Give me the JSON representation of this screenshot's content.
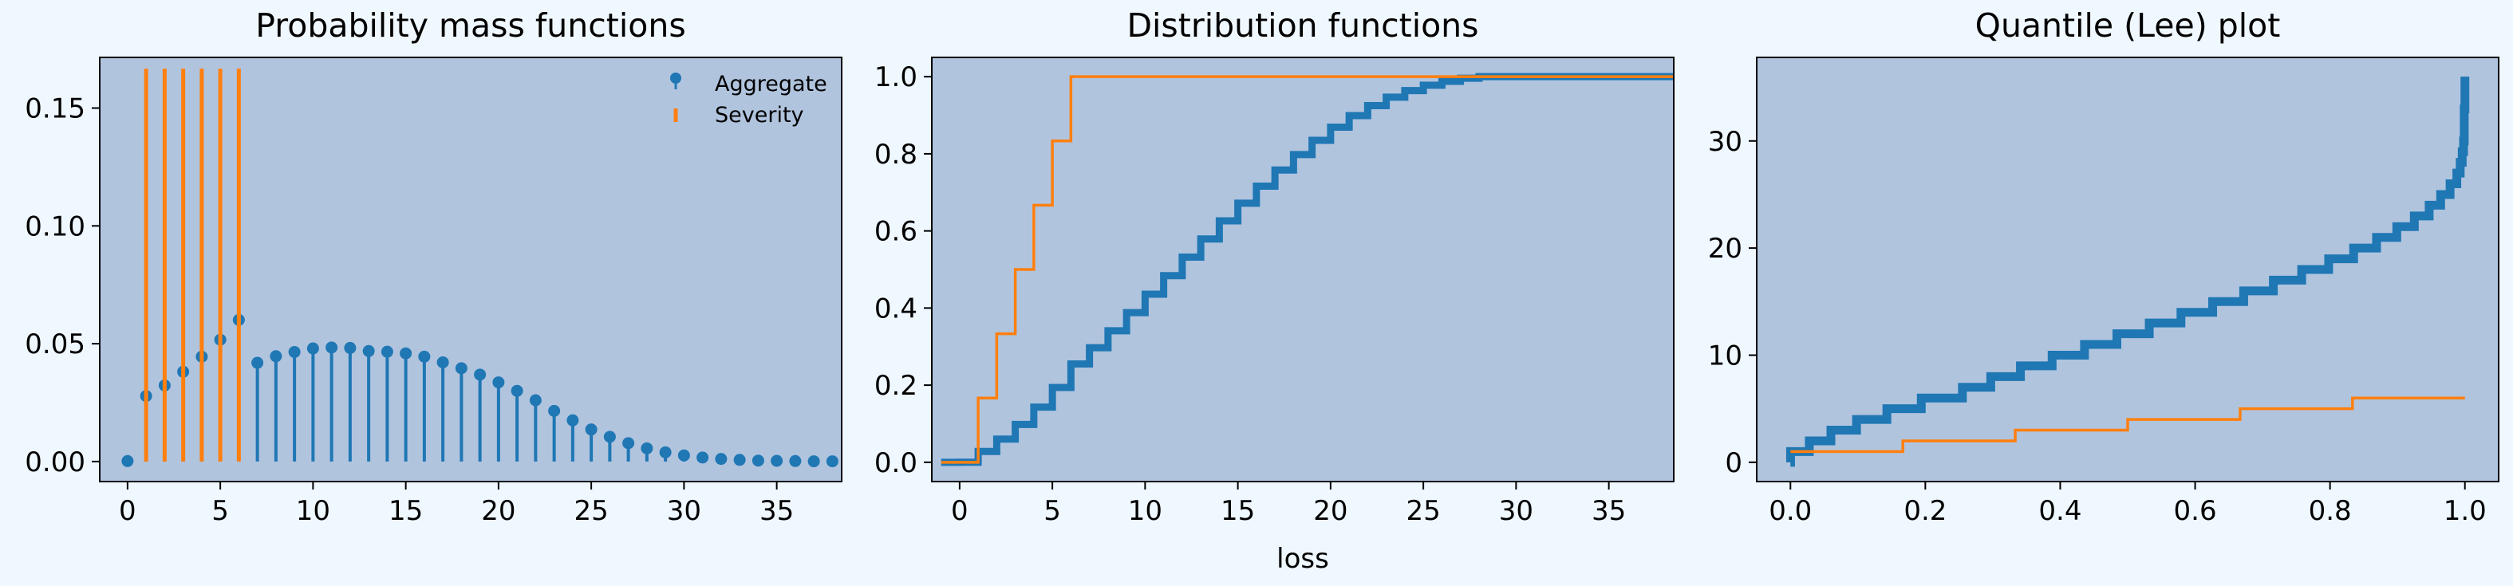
{
  "chart_data": [
    {
      "type": "stem",
      "title": "Probability mass functions",
      "xlabel": "",
      "ylabel": "",
      "xlim": [
        -1.5,
        38.5
      ],
      "ylim": [
        -0.0085,
        0.1715
      ],
      "xticks": [
        0,
        5,
        10,
        15,
        20,
        25,
        30,
        35
      ],
      "yticks": [
        0.0,
        0.05,
        0.1,
        0.15
      ],
      "ytick_labels": [
        "0.00",
        "0.05",
        "0.10",
        "0.15"
      ],
      "legend": {
        "location": "top-right",
        "entries": [
          "Aggregate",
          "Severity"
        ]
      },
      "series": [
        {
          "name": "Aggregate",
          "color": "#1f77b4",
          "x": [
            0,
            1,
            2,
            3,
            4,
            5,
            6,
            7,
            8,
            9,
            10,
            11,
            12,
            13,
            14,
            15,
            16,
            17,
            18,
            19,
            20,
            21,
            22,
            23,
            24,
            25,
            26,
            27,
            28,
            29,
            30,
            31,
            32,
            33,
            34,
            35,
            36,
            37,
            38
          ],
          "values": [
            0.0002,
            0.0278,
            0.0323,
            0.0381,
            0.0445,
            0.0517,
            0.0601,
            0.0419,
            0.0447,
            0.0465,
            0.048,
            0.0484,
            0.0482,
            0.0469,
            0.0466,
            0.0459,
            0.0445,
            0.0421,
            0.0396,
            0.0369,
            0.0336,
            0.03,
            0.026,
            0.0215,
            0.0175,
            0.0136,
            0.0105,
            0.0078,
            0.0056,
            0.0039,
            0.0026,
            0.0017,
            0.0011,
            0.0007,
            0.0004,
            0.0003,
            0.0002,
            0.0001,
            0.0001
          ]
        },
        {
          "name": "Severity",
          "color": "#ff7f0e",
          "x": [
            1,
            2,
            3,
            4,
            5,
            6
          ],
          "values": [
            0.1667,
            0.1667,
            0.1667,
            0.1667,
            0.1667,
            0.1667
          ]
        }
      ]
    },
    {
      "type": "step",
      "title": "Distribution functions",
      "xlabel": "loss",
      "ylabel": "",
      "xlim": [
        -1.5,
        38.5
      ],
      "ylim": [
        -0.05,
        1.05
      ],
      "xticks": [
        0,
        5,
        10,
        15,
        20,
        25,
        30,
        35
      ],
      "yticks": [
        0.0,
        0.2,
        0.4,
        0.6,
        0.8,
        1.0
      ],
      "ytick_labels": [
        "0.0",
        "0.2",
        "0.4",
        "0.6",
        "0.8",
        "1.0"
      ],
      "series": [
        {
          "color": "#1f77b4",
          "x": [
            -1,
            0,
            1,
            2,
            3,
            4,
            5,
            6,
            7,
            8,
            9,
            10,
            11,
            12,
            13,
            14,
            15,
            16,
            17,
            18,
            19,
            20,
            21,
            22,
            23,
            24,
            25,
            26,
            27,
            28,
            29,
            30,
            31,
            32,
            33,
            34,
            35,
            36,
            37,
            38
          ],
          "values": [
            0,
            0.0002,
            0.028,
            0.06,
            0.098,
            0.143,
            0.194,
            0.255,
            0.297,
            0.341,
            0.388,
            0.436,
            0.484,
            0.532,
            0.579,
            0.626,
            0.672,
            0.716,
            0.758,
            0.798,
            0.835,
            0.869,
            0.899,
            0.925,
            0.947,
            0.964,
            0.978,
            0.988,
            0.996,
            1.0,
            1.0,
            1.0,
            1.0,
            1.0,
            1.0,
            1.0,
            1.0,
            1.0,
            1.0,
            1.0
          ]
        },
        {
          "color": "#ff7f0e",
          "x": [
            -1,
            0,
            1,
            2,
            3,
            4,
            5,
            6,
            38
          ],
          "values": [
            0,
            0,
            0.1667,
            0.3333,
            0.5,
            0.6667,
            0.8333,
            1.0,
            1.0
          ]
        }
      ]
    },
    {
      "type": "step",
      "title": "Quantile (Lee) plot",
      "xlabel": "",
      "ylabel": "",
      "xlim": [
        -0.05,
        1.05
      ],
      "ylim": [
        -1.8,
        37.8
      ],
      "xticks": [
        0.0,
        0.2,
        0.4,
        0.6,
        0.8,
        1.0
      ],
      "xtick_labels": [
        "0.0",
        "0.2",
        "0.4",
        "0.6",
        "0.8",
        "1.0"
      ],
      "yticks": [
        0,
        10,
        20,
        30
      ],
      "series": [
        {
          "color": "#1f77b4",
          "x": [
            0,
            0.0002,
            0.028,
            0.06,
            0.098,
            0.143,
            0.194,
            0.255,
            0.297,
            0.341,
            0.388,
            0.436,
            0.484,
            0.532,
            0.579,
            0.626,
            0.672,
            0.716,
            0.758,
            0.798,
            0.835,
            0.869,
            0.899,
            0.925,
            0.947,
            0.964,
            0.978,
            0.988,
            0.993,
            0.996,
            0.998,
            0.999,
            1.0
          ],
          "values": [
            0,
            1,
            2,
            3,
            4,
            5,
            6,
            7,
            8,
            9,
            10,
            11,
            12,
            13,
            14,
            15,
            16,
            17,
            18,
            19,
            20,
            21,
            22,
            23,
            24,
            25,
            26,
            27,
            28,
            29,
            30,
            33,
            36
          ]
        },
        {
          "color": "#ff7f0e",
          "x": [
            0,
            0.1667,
            0.3333,
            0.5,
            0.6667,
            0.8333,
            1.0
          ],
          "values": [
            1,
            2,
            3,
            4,
            5,
            6,
            6
          ]
        }
      ]
    }
  ]
}
